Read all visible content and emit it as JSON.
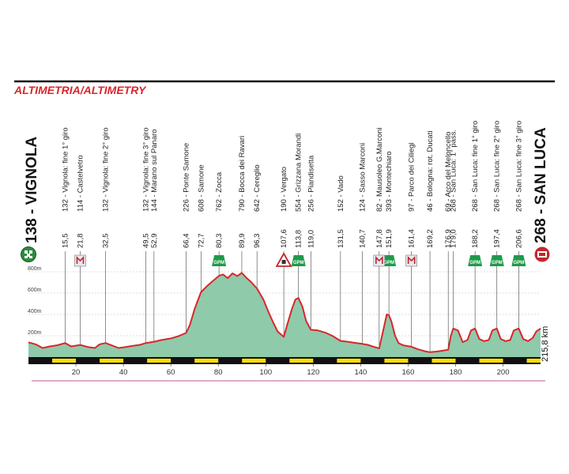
{
  "chart_data": {
    "type": "area",
    "title": "ALTIMETRIA/ALTIMETRY",
    "start_label": "138 - VIGNOLA",
    "finish_label": "268 - SAN LUCA",
    "total_distance_label": "215,8 km",
    "total_km": 215.8,
    "colors": {
      "fill": "#8fcaab",
      "line": "#d9262b",
      "title": "#d9262b",
      "gpm": "#1f9a4a",
      "axis_yellow": "#ffe000"
    },
    "xlim": [
      0,
      215.8
    ],
    "ylim": [
      0,
      800
    ],
    "x_ticks": [
      20,
      40,
      60,
      80,
      100,
      120,
      140,
      160,
      180,
      200
    ],
    "y_ticks": [
      200,
      400,
      600,
      800
    ],
    "y_tick_labels": [
      "200m",
      "400m",
      "600m",
      "800m"
    ],
    "gpm_label": "GPM",
    "waypoints": [
      {
        "km": "15,5",
        "x": 15.5,
        "name": "132 - Vignola: fine 1° giro"
      },
      {
        "km": "21,8",
        "x": 21.8,
        "name": "114 - Castelvetro"
      },
      {
        "km": "32,5",
        "x": 32.5,
        "name": "132 - Vignola: fine 2° giro"
      },
      {
        "km": "49,5",
        "x": 49.5,
        "name": "132 - Vignola: fine 3° giro"
      },
      {
        "km": "52,9",
        "x": 52.9,
        "name": "144 - Marano sul Panaro"
      },
      {
        "km": "66,4",
        "x": 66.4,
        "name": "226 - Ponte Samone"
      },
      {
        "km": "72,7",
        "x": 72.7,
        "name": "608 - Samone"
      },
      {
        "km": "80,3",
        "x": 80.3,
        "name": "762 - Zocca"
      },
      {
        "km": "89,9",
        "x": 89.9,
        "name": "790 - Bocca dei Ravari"
      },
      {
        "km": "96,3",
        "x": 96.3,
        "name": "642 - Cereglio"
      },
      {
        "km": "107,6",
        "x": 107.6,
        "name": "190 - Vergato"
      },
      {
        "km": "113,8",
        "x": 113.8,
        "name": "554 - Grizzana Morandi"
      },
      {
        "km": "119,0",
        "x": 119.0,
        "name": "256 - Piandisetta"
      },
      {
        "km": "131,5",
        "x": 131.5,
        "name": "152 - Vado"
      },
      {
        "km": "140,7",
        "x": 140.7,
        "name": "124 - Sasso Marconi"
      },
      {
        "km": "147,8",
        "x": 147.8,
        "name": "82 - Mausoleo G.Marconi"
      },
      {
        "km": "151,9",
        "x": 151.9,
        "name": "393 - Montechiaro"
      },
      {
        "km": "161,4",
        "x": 161.4,
        "name": "97 - Parco dei Ciliegi"
      },
      {
        "km": "169,2",
        "x": 169.2,
        "name": "46 - Bologna: rot. Ducati"
      },
      {
        "km": "176,9",
        "x": 176.9,
        "name": "69 - Arco del Meloncello"
      },
      {
        "km": "179,0",
        "x": 179.0,
        "name": "268 - San Luca: 1° pass."
      },
      {
        "km": "188,2",
        "x": 188.2,
        "name": "268 - San Luca: fine 1° giro"
      },
      {
        "km": "197,4",
        "x": 197.4,
        "name": "268 - San Luca: fine 2° giro"
      },
      {
        "km": "206,6",
        "x": 206.6,
        "name": "268 - San Luca: fine 3° giro"
      }
    ],
    "gpm_at_km": [
      80.3,
      113.8,
      151.9,
      188.2,
      197.4,
      206.6
    ],
    "sprint_at_km": [
      21.8,
      147.8,
      161.4
    ],
    "danger_at_km": [
      107.6
    ],
    "profile": [
      [
        0,
        138
      ],
      [
        3,
        120
      ],
      [
        6,
        85
      ],
      [
        9,
        100
      ],
      [
        12,
        110
      ],
      [
        15.5,
        132
      ],
      [
        18,
        100
      ],
      [
        21.8,
        114
      ],
      [
        25,
        95
      ],
      [
        28,
        85
      ],
      [
        30,
        120
      ],
      [
        32.5,
        132
      ],
      [
        35,
        110
      ],
      [
        38,
        85
      ],
      [
        41,
        95
      ],
      [
        44,
        105
      ],
      [
        47,
        115
      ],
      [
        49.5,
        132
      ],
      [
        52.9,
        144
      ],
      [
        56,
        160
      ],
      [
        60,
        175
      ],
      [
        63,
        195
      ],
      [
        66.4,
        226
      ],
      [
        68,
        300
      ],
      [
        70,
        450
      ],
      [
        72.7,
        608
      ],
      [
        75,
        660
      ],
      [
        77,
        700
      ],
      [
        80.3,
        762
      ],
      [
        82,
        775
      ],
      [
        84,
        740
      ],
      [
        86,
        785
      ],
      [
        88,
        760
      ],
      [
        89.9,
        790
      ],
      [
        92,
        740
      ],
      [
        94,
        700
      ],
      [
        96.3,
        642
      ],
      [
        99,
        540
      ],
      [
        101,
        430
      ],
      [
        103,
        330
      ],
      [
        105,
        240
      ],
      [
        107.6,
        190
      ],
      [
        109,
        300
      ],
      [
        111,
        450
      ],
      [
        112.5,
        540
      ],
      [
        113.8,
        554
      ],
      [
        115.5,
        470
      ],
      [
        117,
        340
      ],
      [
        119,
        256
      ],
      [
        122,
        250
      ],
      [
        125,
        230
      ],
      [
        128,
        200
      ],
      [
        131.5,
        152
      ],
      [
        134,
        145
      ],
      [
        137,
        135
      ],
      [
        140.7,
        124
      ],
      [
        143,
        115
      ],
      [
        145,
        100
      ],
      [
        147.8,
        82
      ],
      [
        149.5,
        250
      ],
      [
        151,
        400
      ],
      [
        151.9,
        393
      ],
      [
        153,
        330
      ],
      [
        154.5,
        200
      ],
      [
        156,
        130
      ],
      [
        158,
        110
      ],
      [
        161.4,
        97
      ],
      [
        164,
        75
      ],
      [
        167,
        55
      ],
      [
        169.2,
        46
      ],
      [
        172,
        52
      ],
      [
        174.5,
        60
      ],
      [
        176.9,
        69
      ],
      [
        178,
        200
      ],
      [
        179,
        268
      ],
      [
        181,
        250
      ],
      [
        183,
        140
      ],
      [
        185,
        160
      ],
      [
        186.5,
        250
      ],
      [
        188.2,
        268
      ],
      [
        190,
        170
      ],
      [
        192,
        150
      ],
      [
        194,
        160
      ],
      [
        195.5,
        250
      ],
      [
        197.4,
        268
      ],
      [
        199,
        170
      ],
      [
        201,
        150
      ],
      [
        203,
        160
      ],
      [
        204.5,
        250
      ],
      [
        206.6,
        268
      ],
      [
        208.5,
        170
      ],
      [
        210.5,
        150
      ],
      [
        212.5,
        180
      ],
      [
        214,
        240
      ],
      [
        215.8,
        268
      ]
    ]
  }
}
